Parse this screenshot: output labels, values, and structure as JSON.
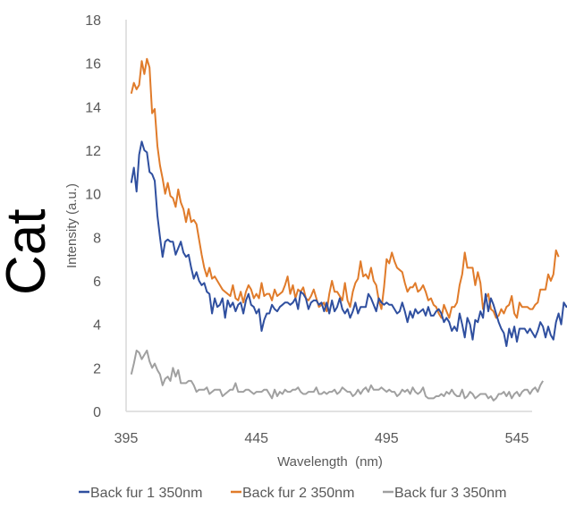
{
  "chart_data": {
    "type": "line",
    "title": "",
    "side_label": "Cat",
    "xlabel": "Wavelength  (nm)",
    "ylabel": "Intensity (a.u.)",
    "xlim": [
      395,
      551
    ],
    "ylim": [
      0,
      18
    ],
    "x_ticks": [
      395,
      445,
      495,
      545
    ],
    "y_ticks": [
      0,
      2,
      4,
      6,
      8,
      10,
      12,
      14,
      16,
      18
    ],
    "grid": false,
    "legend_position": "bottom",
    "x_start": 397,
    "x_step": 1,
    "series": [
      {
        "name": "Back fur 1 350nm",
        "color": "#2F4F9F",
        "values": [
          10.5,
          11.2,
          10.1,
          11.8,
          12.4,
          12.0,
          11.9,
          11.0,
          10.9,
          10.6,
          9.0,
          8.0,
          7.1,
          7.8,
          7.9,
          7.8,
          7.8,
          7.2,
          7.5,
          7.8,
          7.3,
          7.1,
          7.2,
          6.6,
          6.1,
          6.4,
          6.0,
          5.8,
          5.9,
          5.5,
          5.4,
          4.5,
          5.2,
          4.8,
          4.9,
          5.2,
          4.3,
          5.1,
          4.8,
          5.0,
          4.6,
          4.9,
          5.0,
          4.5,
          5.1,
          5.4,
          4.9,
          4.8,
          4.5,
          4.7,
          3.7,
          4.2,
          4.5,
          4.5,
          4.9,
          4.7,
          4.6,
          4.8,
          4.9,
          5.0,
          5.0,
          4.9,
          5.0,
          5.2,
          4.7,
          5.5,
          5.4,
          5.2,
          4.7,
          5.0,
          5.1,
          5.1,
          4.9,
          5.0,
          4.6,
          5.0,
          4.5,
          5.1,
          4.6,
          4.8,
          5.2,
          4.7,
          4.5,
          4.7,
          4.3,
          4.6,
          5.0,
          4.5,
          4.8,
          4.8,
          4.8,
          5.4,
          5.2,
          4.9,
          4.6,
          5.2,
          5.0,
          4.9,
          5.0,
          4.9,
          4.9,
          4.7,
          4.5,
          4.6,
          5.0,
          4.6,
          4.1,
          4.6,
          4.3,
          4.7,
          4.5,
          4.6,
          4.7,
          4.4,
          4.8,
          4.4,
          4.4,
          4.6,
          4.7,
          4.5,
          4.1,
          4.3,
          4.1,
          3.7,
          3.9,
          3.7,
          4.5,
          4.0,
          3.4,
          4.3,
          4.0,
          3.3,
          4.2,
          4.1,
          4.6,
          4.3,
          5.4,
          4.6,
          5.2,
          4.9,
          4.5,
          4.1,
          3.8,
          3.6,
          3.0,
          3.8,
          3.4,
          3.9,
          3.2,
          3.8,
          3.8,
          3.8,
          3.6,
          3.8,
          3.6,
          3.4,
          3.7,
          4.1,
          3.9,
          3.4,
          3.9,
          3.5,
          3.3,
          4.1,
          4.5,
          4.0,
          5.0,
          4.8,
          4.9,
          5.2,
          4.9,
          5.6
        ]
      },
      {
        "name": "Back fur 2 350nm",
        "color": "#E07B2A",
        "values": [
          14.6,
          15.1,
          14.8,
          15.0,
          16.1,
          15.5,
          16.2,
          15.8,
          13.7,
          13.9,
          12.2,
          11.3,
          10.7,
          10.0,
          10.5,
          9.9,
          9.8,
          9.4,
          10.2,
          9.6,
          9.3,
          8.7,
          9.3,
          8.7,
          8.8,
          8.6,
          7.9,
          7.2,
          6.6,
          6.2,
          6.6,
          6.1,
          6.2,
          6.0,
          5.8,
          5.6,
          5.5,
          5.4,
          5.3,
          5.8,
          5.2,
          5.1,
          5.5,
          5.0,
          5.5,
          5.8,
          5.6,
          5.2,
          5.4,
          5.2,
          5.9,
          5.3,
          5.4,
          5.4,
          5.1,
          5.6,
          5.3,
          5.4,
          5.5,
          5.8,
          6.2,
          5.4,
          5.8,
          5.2,
          5.6,
          5.5,
          5.7,
          5.2,
          5.1,
          5.3,
          5.6,
          5.2,
          4.8,
          4.9,
          5.0,
          4.6,
          5.4,
          6.0,
          5.5,
          5.5,
          5.3,
          5.1,
          5.9,
          5.1,
          4.8,
          5.5,
          5.9,
          6.1,
          6.9,
          6.2,
          6.3,
          6.1,
          6.6,
          6.0,
          5.8,
          5.1,
          4.7,
          5.7,
          7.0,
          6.8,
          7.3,
          6.9,
          6.6,
          6.5,
          6.4,
          5.9,
          5.5,
          5.7,
          5.7,
          5.9,
          5.5,
          5.6,
          5.8,
          5.5,
          5.1,
          5.2,
          4.9,
          4.8,
          4.5,
          4.3,
          4.9,
          4.6,
          4.3,
          4.8,
          4.8,
          5.0,
          5.8,
          6.3,
          7.3,
          6.6,
          6.6,
          6.6,
          5.8,
          6.4,
          5.9,
          4.7,
          5.2,
          5.4,
          4.7,
          4.6,
          4.3,
          4.4,
          4.7,
          4.5,
          4.8,
          4.9,
          5.3,
          4.5,
          4.3,
          5.0,
          4.8,
          4.8,
          4.8,
          4.7,
          4.7,
          4.9,
          5.0,
          5.6,
          5.6,
          5.6,
          6.3,
          6.0,
          6.3,
          7.4,
          7.1
        ]
      },
      {
        "name": "Back fur 3 350nm",
        "color": "#A0A0A0",
        "values": [
          1.7,
          2.2,
          2.8,
          2.7,
          2.4,
          2.6,
          2.8,
          2.3,
          2.0,
          2.2,
          1.9,
          1.7,
          1.2,
          1.5,
          1.6,
          1.4,
          2.0,
          1.6,
          1.9,
          1.3,
          1.3,
          1.3,
          1.4,
          1.4,
          1.2,
          0.9,
          1.0,
          1.0,
          1.0,
          1.1,
          0.8,
          0.9,
          1.0,
          1.0,
          1.0,
          0.7,
          0.8,
          0.9,
          1.0,
          1.0,
          1.3,
          0.9,
          0.9,
          0.9,
          1.0,
          1.0,
          0.9,
          0.8,
          0.9,
          0.9,
          0.9,
          1.0,
          1.0,
          0.8,
          0.6,
          1.0,
          0.7,
          0.9,
          0.8,
          1.0,
          0.9,
          0.9,
          1.0,
          1.0,
          1.1,
          0.9,
          0.8,
          0.8,
          0.9,
          0.9,
          0.9,
          1.1,
          0.8,
          0.8,
          0.9,
          0.8,
          0.9,
          0.9,
          1.0,
          0.8,
          0.9,
          1.1,
          1.0,
          0.9,
          0.9,
          0.7,
          0.8,
          1.0,
          0.8,
          1.0,
          1.1,
          0.9,
          1.2,
          1.0,
          1.0,
          1.0,
          1.1,
          1.0,
          0.9,
          1.0,
          0.9,
          0.9,
          0.7,
          0.8,
          1.0,
          0.9,
          1.0,
          0.8,
          1.1,
          0.9,
          0.8,
          0.9,
          1.1,
          0.7,
          0.6,
          0.6,
          0.6,
          0.7,
          0.7,
          0.8,
          0.7,
          0.9,
          0.8,
          1.0,
          0.8,
          0.7,
          0.7,
          1.0,
          0.6,
          0.7,
          0.9,
          0.8,
          0.6,
          0.7,
          0.8,
          0.8,
          0.8,
          0.6,
          0.7,
          0.5,
          0.6,
          0.8,
          0.8,
          0.9,
          0.7,
          0.9,
          0.6,
          0.8,
          0.9,
          0.7,
          0.9,
          1.0,
          1.0,
          0.8,
          1.0,
          1.1,
          0.9,
          1.2,
          1.4
        ]
      }
    ]
  }
}
